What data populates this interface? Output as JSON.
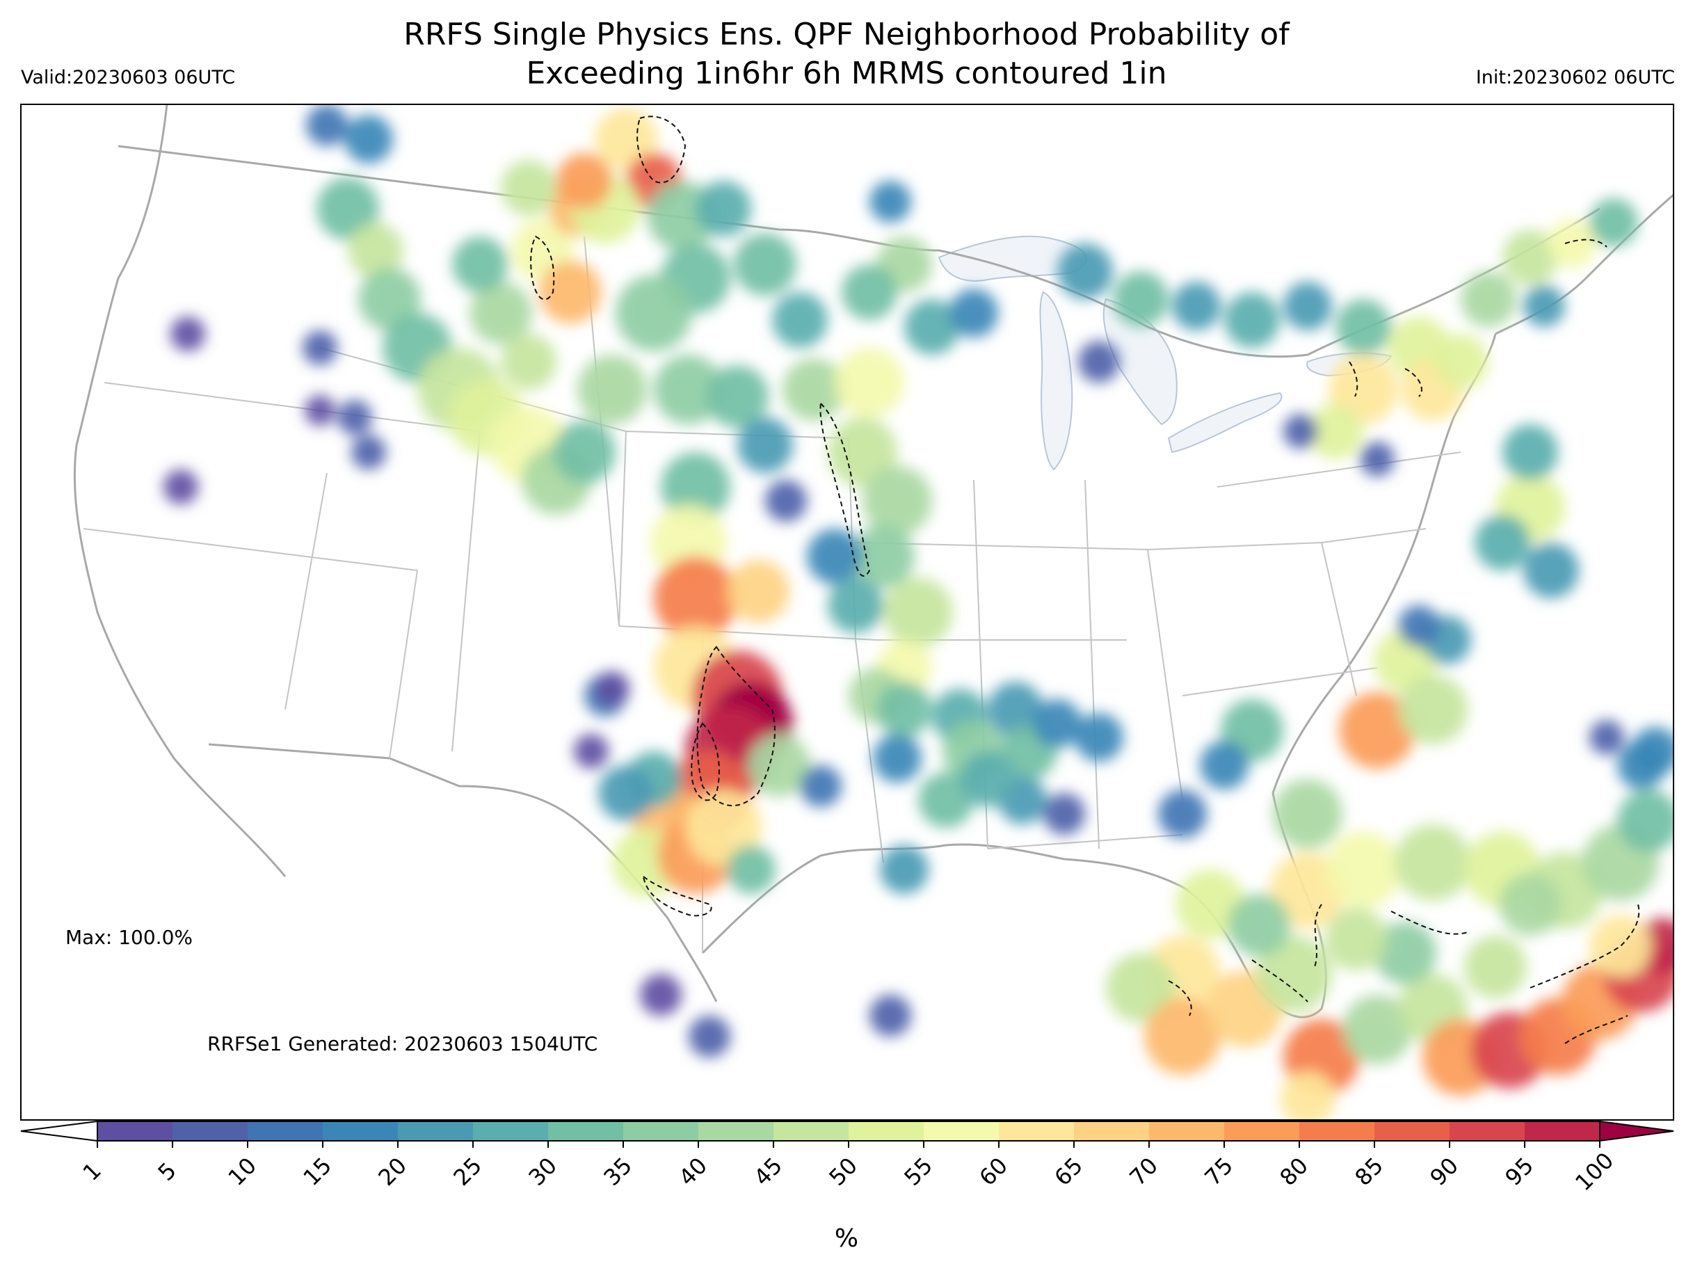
{
  "title": {
    "line1": "RRFS Single Physics Ens. QPF Neighborhood Probability of",
    "line2": "Exceeding 1in6hr 6h MRMS contoured 1in"
  },
  "valid_label": "Valid:20230603 06UTC",
  "init_label": "Init:20230602 06UTC",
  "max_label": "Max: 100.0%",
  "generated_label": "RRFSe1 Generated: 20230603 1504UTC",
  "colorbar": {
    "units": "%",
    "levels": [
      "1",
      "5",
      "10",
      "15",
      "20",
      "25",
      "30",
      "35",
      "40",
      "45",
      "50",
      "55",
      "60",
      "65",
      "70",
      "75",
      "80",
      "85",
      "90",
      "95",
      "100"
    ],
    "colors": [
      "#5e4fa2",
      "#4f62a9",
      "#4075b4",
      "#3a87b7",
      "#4a9ab4",
      "#5aaeae",
      "#72bfa5",
      "#8ecda4",
      "#a9d8a2",
      "#c6e59e",
      "#e0f29c",
      "#f3f9ad",
      "#fee79a",
      "#fed283",
      "#fdb96b",
      "#fb9c59",
      "#f57d4b",
      "#e8604a",
      "#d9454e",
      "#c1264b",
      "#9e0142"
    ],
    "extend": "both"
  },
  "map": {
    "land_color": "#ffffff",
    "lake_color": "#f0f4f9",
    "border_color": "#b0b0b0"
  }
}
